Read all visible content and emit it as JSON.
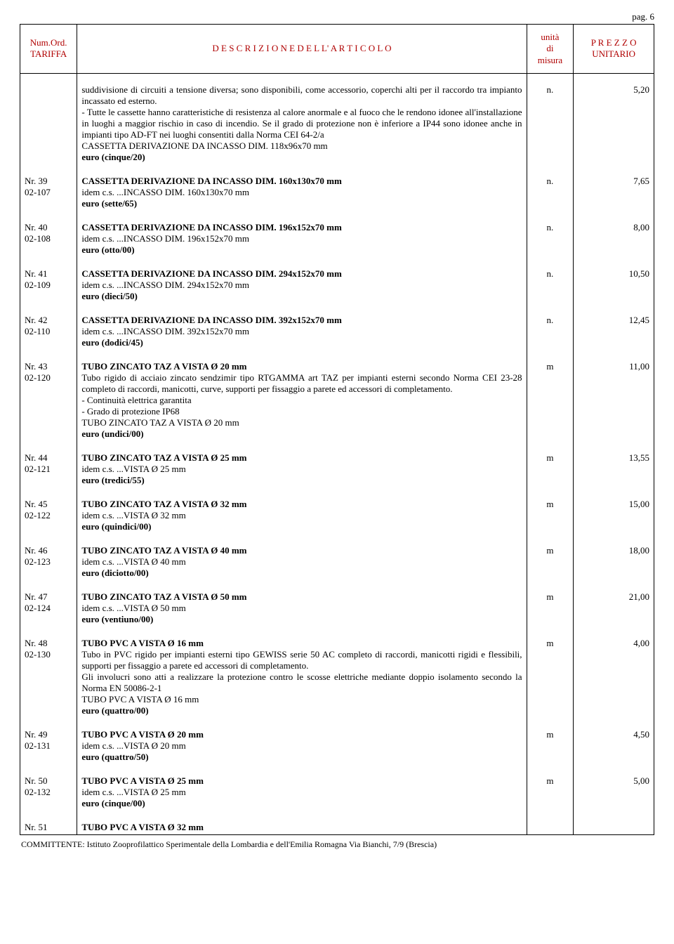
{
  "page_label": "pag. 6",
  "colors": {
    "header_text": "#b00000",
    "border": "#000000",
    "body_text": "#000000",
    "background": "#ffffff"
  },
  "fonts": {
    "family": "Times New Roman",
    "body_size_pt": 10,
    "header_size_pt": 10
  },
  "header": {
    "col1_line1": "Num.Ord.",
    "col1_line2": "TARIFFA",
    "col2": "D E S C R I Z I O N E   D E L L' A R T I C O L O",
    "col3_line1": "unità",
    "col3_line2": "di",
    "col3_line3": "misura",
    "col4_line1": "P R E Z Z O",
    "col4_line2": "UNITARIO"
  },
  "intro": {
    "para": "suddivisione di circuiti a tensione diversa; sono disponibili, come accessorio, coperchi alti per il raccordo tra impianto incassato ed esterno.\n- Tutte le cassette hanno caratteristiche di resistenza al calore anormale e al fuoco che le rendono idonee all'installazione in luoghi a maggior rischio in caso di incendio. Se il grado di protezione non è inferiore a IP44 sono idonee anche in impianti tipo AD-FT nei luoghi consentiti dalla Norma CEI 64-2/a\nCASSETTA DERIVAZIONE DA INCASSO DIM. 118x96x70 mm",
    "price_line": "euro (cinque/20)",
    "unit": "n.",
    "price": "5,20"
  },
  "rows": [
    {
      "num1": "Nr. 39",
      "num2": "02-107",
      "title": "CASSETTA DERIVAZIONE DA INCASSO DIM. 160x130x70 mm",
      "sub": "idem c.s. ...INCASSO DIM. 160x130x70 mm",
      "price_line": "euro (sette/65)",
      "unit": "n.",
      "price": "7,65"
    },
    {
      "num1": "Nr. 40",
      "num2": "02-108",
      "title": "CASSETTA DERIVAZIONE DA INCASSO DIM. 196x152x70 mm",
      "sub": "idem c.s. ...INCASSO DIM. 196x152x70 mm",
      "price_line": "euro (otto/00)",
      "unit": "n.",
      "price": "8,00"
    },
    {
      "num1": "Nr. 41",
      "num2": "02-109",
      "title": "CASSETTA DERIVAZIONE DA INCASSO DIM. 294x152x70 mm",
      "sub": "idem c.s. ...INCASSO DIM. 294x152x70 mm",
      "price_line": "euro (dieci/50)",
      "unit": "n.",
      "price": "10,50"
    },
    {
      "num1": "Nr. 42",
      "num2": "02-110",
      "title": "CASSETTA DERIVAZIONE DA INCASSO DIM. 392x152x70 mm",
      "sub": "idem c.s. ...INCASSO DIM. 392x152x70 mm",
      "price_line": "euro (dodici/45)",
      "unit": "n.",
      "price": "12,45"
    },
    {
      "num1": "Nr. 43",
      "num2": "02-120",
      "title": "TUBO ZINCATO TAZ A VISTA Ø 20 mm",
      "sub": "Tubo rigido di acciaio zincato sendzimir tipo RTGAMMA art TAZ per impianti esterni secondo Norma CEI 23-28 completo di raccordi, manicotti, curve, supporti per fissaggio a parete ed accessori di completamento.\n- Continuità elettrica garantita\n- Grado di protezione IP68\nTUBO ZINCATO TAZ A VISTA Ø 20 mm",
      "price_line": "euro (undici/00)",
      "unit": "m",
      "price": "11,00"
    },
    {
      "num1": "Nr. 44",
      "num2": "02-121",
      "title": "TUBO ZINCATO TAZ A VISTA Ø 25 mm",
      "sub": "idem c.s. ...VISTA Ø 25 mm",
      "price_line": "euro (tredici/55)",
      "unit": "m",
      "price": "13,55"
    },
    {
      "num1": "Nr. 45",
      "num2": "02-122",
      "title": "TUBO ZINCATO TAZ A VISTA Ø 32 mm",
      "sub": "idem c.s. ...VISTA Ø 32 mm",
      "price_line": "euro (quindici/00)",
      "unit": "m",
      "price": "15,00"
    },
    {
      "num1": "Nr. 46",
      "num2": "02-123",
      "title": "TUBO ZINCATO TAZ A VISTA Ø 40 mm",
      "sub": "idem c.s. ...VISTA Ø 40 mm",
      "price_line": "euro (diciotto/00)",
      "unit": "m",
      "price": "18,00"
    },
    {
      "num1": "Nr. 47",
      "num2": "02-124",
      "title": "TUBO ZINCATO TAZ A VISTA Ø 50 mm",
      "sub": "idem c.s. ...VISTA Ø 50 mm",
      "price_line": "euro (ventiuno/00)",
      "unit": "m",
      "price": "21,00"
    },
    {
      "num1": "Nr. 48",
      "num2": "02-130",
      "title": "TUBO PVC A VISTA Ø 16 mm",
      "sub": "Tubo in PVC rigido per impianti esterni tipo GEWISS serie 50 AC completo di raccordi, manicotti rigidi e flessibili, supporti per fissaggio a parete ed accessori di completamento.\nGli involucri sono atti a realizzare la protezione contro le scosse elettriche mediante doppio isolamento secondo la Norma EN 50086-2-1\nTUBO PVC A VISTA Ø 16 mm",
      "price_line": "euro (quattro/00)",
      "unit": "m",
      "price": "4,00"
    },
    {
      "num1": "Nr. 49",
      "num2": "02-131",
      "title": "TUBO PVC A VISTA Ø 20 mm",
      "sub": "idem c.s. ...VISTA Ø 20 mm",
      "price_line": "euro (quattro/50)",
      "unit": "m",
      "price": "4,50"
    },
    {
      "num1": "Nr. 50",
      "num2": "02-132",
      "title": "TUBO PVC A VISTA Ø 25 mm",
      "sub": "idem c.s. ...VISTA Ø 25 mm",
      "price_line": "euro (cinque/00)",
      "unit": "m",
      "price": "5,00"
    }
  ],
  "trailing": {
    "num1": "Nr. 51",
    "title": "TUBO PVC A VISTA Ø 32 mm"
  },
  "committente": "COMMITTENTE: Istituto Zooprofilattico Sperimentale della Lombardia e dell'Emilia Romagna  Via Bianchi, 7/9 (Brescia)"
}
